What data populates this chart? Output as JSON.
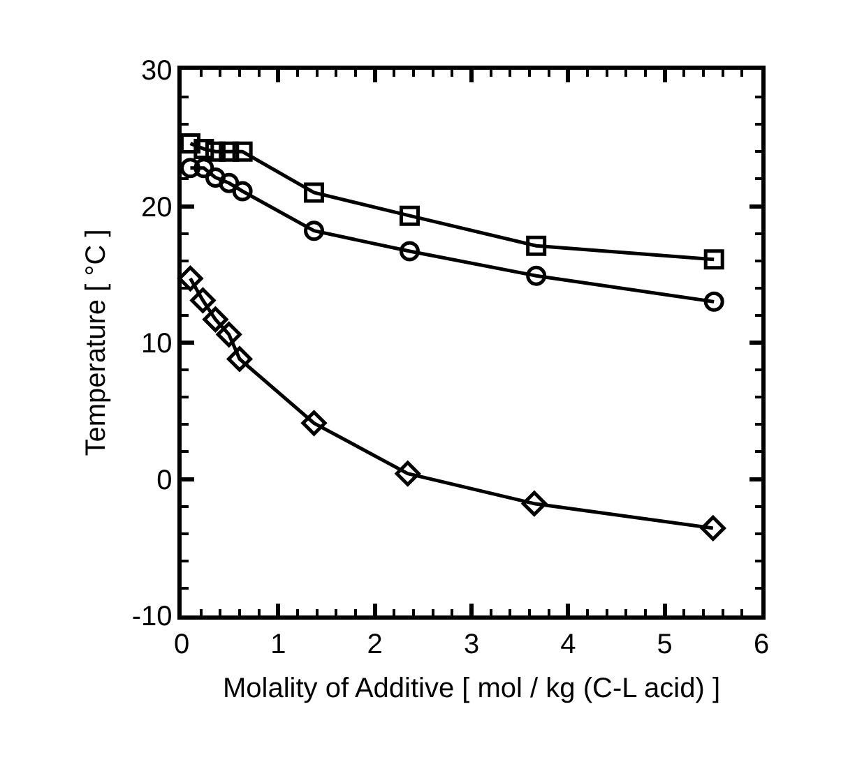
{
  "chart_data": {
    "type": "line",
    "xlabel": "Molality of Additive [ mol / kg (C-L acid) ]",
    "ylabel": "Temperature [ °C ]",
    "x": [
      0.09,
      0.23,
      0.35,
      0.49,
      0.63,
      1.37,
      2.36,
      3.67,
      5.51
    ],
    "series": [
      {
        "color": "#000000",
        "marker": "square",
        "values": [
          24.6,
          24.2,
          24.0,
          24.0,
          24.0,
          21.0,
          19.3,
          17.1,
          16.1
        ]
      },
      {
        "color": "#000000",
        "marker": "circle",
        "values": [
          22.8,
          22.8,
          22.1,
          21.7,
          21.1,
          18.2,
          16.7,
          14.9,
          13.0
        ]
      },
      {
        "color": "#000000",
        "marker": "diamond",
        "x": [
          0.09,
          0.22,
          0.35,
          0.49,
          0.6,
          1.37,
          2.34,
          3.65,
          5.5
        ],
        "values": [
          14.7,
          13.1,
          11.7,
          10.6,
          8.8,
          4.1,
          0.4,
          -1.8,
          -3.6
        ]
      }
    ],
    "xlim": [
      0,
      6
    ],
    "ylim": [
      -10,
      30
    ],
    "xticks": [
      0,
      {
        "value": 0.2,
        "label": null
      },
      {
        "value": 0.4,
        "label": null
      },
      {
        "value": 0.6,
        "label": null
      },
      {
        "value": 0.8,
        "label": null
      },
      1,
      {
        "value": 1.2,
        "label": null
      },
      {
        "value": 1.4,
        "label": null
      },
      {
        "value": 1.6,
        "label": null
      },
      {
        "value": 1.8,
        "label": null
      },
      2,
      {
        "value": 2.2,
        "label": null
      },
      {
        "value": 2.4,
        "label": null
      },
      {
        "value": 2.6,
        "label": null
      },
      {
        "value": 2.8,
        "label": null
      },
      3,
      {
        "value": 3.2,
        "label": null
      },
      {
        "value": 3.4,
        "label": null
      },
      {
        "value": 3.6,
        "label": null
      },
      {
        "value": 3.8,
        "label": null
      },
      4,
      {
        "value": 4.2,
        "label": null
      },
      {
        "value": 4.4,
        "label": null
      },
      {
        "value": 4.6,
        "label": null
      },
      {
        "value": 4.8,
        "label": null
      },
      5,
      {
        "value": 5.2,
        "label": null
      },
      {
        "value": 5.4,
        "label": null
      },
      {
        "value": 5.6,
        "label": null
      },
      {
        "value": 5.8,
        "label": null
      },
      6
    ],
    "yticks": [
      -10,
      {
        "value": -8,
        "label": null
      },
      {
        "value": -6,
        "label": null
      },
      {
        "value": -4,
        "label": null
      },
      {
        "value": -2,
        "label": null
      },
      0,
      {
        "value": 2,
        "label": null
      },
      {
        "value": 4,
        "label": null
      },
      {
        "value": 6,
        "label": null
      },
      {
        "value": 8,
        "label": null
      },
      10,
      {
        "value": 12,
        "label": null
      },
      {
        "value": 14,
        "label": null
      },
      {
        "value": 16,
        "label": null
      },
      {
        "value": 18,
        "label": null
      },
      20,
      {
        "value": 22,
        "label": null
      },
      {
        "value": 24,
        "label": null
      },
      {
        "value": 26,
        "label": null
      },
      {
        "value": 28,
        "label": null
      },
      30
    ],
    "grid": false,
    "legend": false,
    "line_style": "solid"
  }
}
